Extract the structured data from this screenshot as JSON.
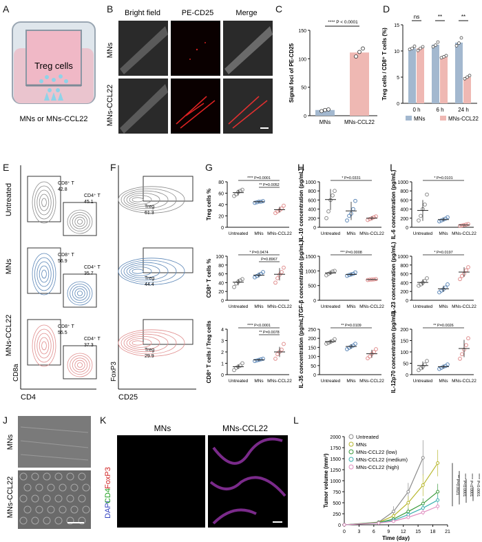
{
  "panel_letters": [
    "A",
    "B",
    "C",
    "D",
    "E",
    "F",
    "G",
    "H",
    "I",
    "J",
    "K",
    "L"
  ],
  "panel_a": {
    "cell_label": "Treg cells",
    "caption": "MNs or MNs-CCL22"
  },
  "panel_b": {
    "columns": [
      "Bright field",
      "PE-CD25",
      "Merge"
    ],
    "rows": [
      "MNs",
      "MNs-CCL22"
    ]
  },
  "panel_e": {
    "row_labels": [
      "Untreated",
      "MNs",
      "MNs-CCL22"
    ],
    "gates": [
      {
        "cd8_label": "CD8⁺ T",
        "cd8_value": "42.8",
        "cd4_label": "CD4⁺ T",
        "cd4_value": "45.1"
      },
      {
        "cd8_label": "CD8⁺ T",
        "cd8_value": "56.9",
        "cd4_label": "CD4⁺ T",
        "cd4_value": "35.7"
      },
      {
        "cd8_label": "CD8⁺ T",
        "cd8_value": "55.5",
        "cd4_label": "CD4⁺ T",
        "cd4_value": "37.3"
      }
    ],
    "xaxis": "CD4",
    "yaxis": "CD8a"
  },
  "panel_f": {
    "gate_label": "Treg",
    "values": [
      "61.3",
      "44.4",
      "29.9"
    ],
    "xaxis": "CD25",
    "yaxis": "FoxP3"
  },
  "panel_j": {
    "rows": [
      "MNs",
      "MNs-CCL22"
    ]
  },
  "panel_k": {
    "titles": [
      "MNs",
      "MNs-CCL22"
    ],
    "ylabel_parts": [
      "DAPI",
      "CD4",
      "FoxP3"
    ]
  },
  "colors": {
    "untreated": "#8a8a8a",
    "mns": "#5b86b7",
    "ccl22": "#e08c8c",
    "bar_mns": "#a3b8cf",
    "bar_ccl22": "#efb8b3"
  },
  "chart_data": [
    {
      "id": "C",
      "type": "bar",
      "categories": [
        "MNs",
        "MNs-CCL22"
      ],
      "values": [
        10,
        111
      ],
      "points": [
        [
          8,
          10,
          11
        ],
        [
          104,
          112,
          118
        ]
      ],
      "ylabel": "Signal foci of PE-CD25",
      "ylim": [
        0,
        150
      ],
      "yticks": [
        0,
        50,
        100,
        150
      ],
      "annotation": "**** P < 0.0001"
    },
    {
      "id": "D",
      "type": "bar",
      "categories": [
        "0 h",
        "6 h",
        "24 h"
      ],
      "series": [
        {
          "name": "MNs",
          "values": [
            10.5,
            11.2,
            11.6
          ],
          "points": [
            [
              10.3,
              10.5,
              10.9
            ],
            [
              10.8,
              11.1,
              11.7
            ],
            [
              11.0,
              11.5,
              12.5
            ]
          ]
        },
        {
          "name": "MNs-CCL22",
          "values": [
            10.5,
            8.9,
            5.0
          ],
          "points": [
            [
              10.1,
              10.5,
              10.8
            ],
            [
              8.7,
              8.9,
              9.1
            ],
            [
              4.7,
              5.0,
              5.3
            ]
          ]
        }
      ],
      "ylabel": "Treg cells / CD8⁺ T cells (%)",
      "ylim": [
        0,
        15
      ],
      "yticks": [
        0,
        5,
        10,
        15
      ],
      "sig": [
        "ns",
        "**",
        "**"
      ]
    },
    {
      "id": "G1",
      "type": "scatter",
      "categories": [
        "Untreated",
        "MNs",
        "MNs-CCL22"
      ],
      "ylabel": "Treg cells %",
      "ylim": [
        0,
        80
      ],
      "yticks": [
        0,
        20,
        40,
        60,
        80
      ],
      "points": [
        [
          55,
          58,
          62,
          64,
          66
        ],
        [
          43,
          44,
          45,
          45,
          46
        ],
        [
          25,
          28,
          30,
          33,
          38
        ]
      ],
      "means": [
        61,
        45,
        31
      ],
      "sds": [
        5,
        1.5,
        5
      ],
      "brackets": [
        {
          "from": 0,
          "to": 2,
          "text": "**** P=0.0001"
        },
        {
          "from": 1,
          "to": 2,
          "text": "** P=0.0052"
        }
      ]
    },
    {
      "id": "G2",
      "type": "scatter",
      "categories": [
        "Untreated",
        "MNs",
        "MNs-CCL22"
      ],
      "ylabel": "CD8⁺ T cells %",
      "ylim": [
        0,
        100
      ],
      "yticks": [
        0,
        20,
        40,
        60,
        80,
        100
      ],
      "points": [
        [
          30,
          38,
          42,
          45,
          48
        ],
        [
          52,
          55,
          58,
          60,
          64
        ],
        [
          40,
          50,
          58,
          64,
          74
        ]
      ],
      "means": [
        41,
        57,
        59
      ],
      "sds": [
        7,
        5,
        14
      ],
      "brackets": [
        {
          "from": 0,
          "to": 2,
          "text": "* P=0.0474"
        },
        {
          "from": 1,
          "to": 2,
          "text": "P=0.8967"
        }
      ]
    },
    {
      "id": "G3",
      "type": "scatter",
      "categories": [
        "Untreated",
        "MNs",
        "MNs-CCL22"
      ],
      "ylabel": "CD8⁺ T cells / Treg cells",
      "ylim": [
        0,
        4
      ],
      "yticks": [
        0,
        1,
        2,
        3,
        4
      ],
      "points": [
        [
          0.4,
          0.6,
          0.7,
          0.8,
          1.0
        ],
        [
          1.2,
          1.25,
          1.3,
          1.35,
          1.4
        ],
        [
          1.4,
          1.8,
          2.0,
          2.2,
          2.7
        ]
      ],
      "means": [
        0.7,
        1.3,
        2.0
      ],
      "sds": [
        0.2,
        0.1,
        0.45
      ],
      "brackets": [
        {
          "from": 0,
          "to": 2,
          "text": "**** P<0.0001"
        },
        {
          "from": 1,
          "to": 2,
          "text": "** P=0.0078"
        }
      ]
    },
    {
      "id": "H1",
      "type": "scatter",
      "categories": [
        "Untreated",
        "MNs",
        "MNs-CCL22"
      ],
      "ylabel": "IL-10 concentration (pg/mL)",
      "ylim": [
        0,
        1000
      ],
      "yticks": [
        0,
        200,
        400,
        600,
        800,
        1000
      ],
      "points": [
        [
          200,
          350,
          600,
          700,
          800
        ],
        [
          150,
          250,
          300,
          400,
          580
        ],
        [
          160,
          180,
          200,
          220,
          240
        ]
      ],
      "means": [
        610,
        360,
        200
      ],
      "sds": [
        230,
        200,
        40
      ],
      "brackets": [
        {
          "from": 0,
          "to": 2,
          "text": "* P=0.0331"
        }
      ]
    },
    {
      "id": "H2",
      "type": "scatter",
      "categories": [
        "Untreated",
        "MNs",
        "MNs-CCL22"
      ],
      "ylabel": "TGF-β concentration (pg/mL)",
      "ylim": [
        0,
        1500
      ],
      "yticks": [
        0,
        500,
        1000,
        1500
      ],
      "points": [
        [
          850,
          900,
          940,
          980,
          1000
        ],
        [
          830,
          860,
          880,
          900,
          950
        ],
        [
          690,
          700,
          705,
          710,
          720
        ]
      ],
      "means": [
        930,
        880,
        705
      ],
      "sds": [
        60,
        50,
        15
      ],
      "brackets": [
        {
          "from": 0,
          "to": 2,
          "text": "*** P=0.0008"
        }
      ]
    },
    {
      "id": "H3",
      "type": "scatter",
      "categories": [
        "Untreated",
        "MNs",
        "MNs-CCL22"
      ],
      "ylabel": "IL-35 concentration (pg/mL)",
      "ylim": [
        0,
        250
      ],
      "yticks": [
        0,
        50,
        100,
        150,
        200,
        250
      ],
      "points": [
        [
          170,
          175,
          180,
          185,
          195
        ],
        [
          140,
          148,
          155,
          160,
          170
        ],
        [
          90,
          100,
          115,
          125,
          140
        ]
      ],
      "means": [
        182,
        155,
        115
      ],
      "sds": [
        10,
        12,
        22
      ],
      "brackets": [
        {
          "from": 0,
          "to": 2,
          "text": "** P=0.0109"
        }
      ]
    },
    {
      "id": "I1",
      "type": "scatter",
      "categories": [
        "Untreated",
        "MNs",
        "MNs-CCL22"
      ],
      "ylabel": "IL-6 concentration (pg/mL)",
      "ylim": [
        0,
        1000
      ],
      "yticks": [
        0,
        200,
        400,
        600,
        800,
        1000
      ],
      "points": [
        [
          150,
          250,
          400,
          500,
          720
        ],
        [
          130,
          150,
          170,
          190,
          220
        ],
        [
          30,
          40,
          50,
          60,
          70
        ]
      ],
      "means": [
        370,
        170,
        50
      ],
      "sds": [
        230,
        40,
        15
      ],
      "brackets": [
        {
          "from": 0,
          "to": 2,
          "text": "* P=0.0101"
        }
      ]
    },
    {
      "id": "I2",
      "type": "scatter",
      "categories": [
        "Untreated",
        "MNs",
        "MNs-CCL22"
      ],
      "ylabel": "IL-23 concentration (pg/mL)",
      "ylim": [
        0,
        1000
      ],
      "yticks": [
        0,
        200,
        400,
        600,
        800,
        1000
      ],
      "points": [
        [
          330,
          360,
          400,
          440,
          500
        ],
        [
          180,
          220,
          250,
          290,
          360
        ],
        [
          480,
          550,
          600,
          680,
          750
        ]
      ],
      "means": [
        405,
        260,
        640
      ],
      "sds": [
        70,
        70,
        110
      ],
      "brackets": [
        {
          "from": 0,
          "to": 2,
          "text": "* P=0.0197"
        }
      ]
    },
    {
      "id": "I3",
      "type": "scatter",
      "categories": [
        "Untreated",
        "MNs",
        "MNs-CCL22"
      ],
      "ylabel": "IL-12p70 concentration (pg/mL)",
      "ylim": [
        0,
        200
      ],
      "yticks": [
        0,
        50,
        100,
        150,
        200
      ],
      "points": [
        [
          20,
          28,
          35,
          45,
          60
        ],
        [
          25,
          30,
          35,
          38,
          45
        ],
        [
          70,
          90,
          110,
          130,
          160
        ]
      ],
      "means": [
        40,
        35,
        115
      ],
      "sds": [
        18,
        8,
        38
      ],
      "brackets": [
        {
          "from": 0,
          "to": 2,
          "text": "** P=0.0026"
        }
      ]
    },
    {
      "id": "L",
      "type": "line",
      "xlabel": "Time (day)",
      "ylabel": "Tumor volume (mm³)",
      "x": [
        0,
        7,
        10,
        13,
        16,
        19
      ],
      "xlim": [
        0,
        21
      ],
      "xticks": [
        0,
        3,
        6,
        9,
        12,
        15,
        18,
        21
      ],
      "ylim": [
        0,
        2000
      ],
      "yticks": [
        0,
        250,
        500,
        750,
        1000,
        1250,
        1500,
        1750,
        2000
      ],
      "series": [
        {
          "name": "Untreated",
          "x": [
            0,
            7,
            10,
            13,
            16
          ],
          "values": [
            0,
            60,
            300,
            750,
            1520
          ],
          "err": [
            0,
            15,
            120,
            200,
            400
          ]
        },
        {
          "name": "MNs",
          "x": [
            0,
            7,
            10,
            13,
            16,
            19
          ],
          "values": [
            0,
            55,
            200,
            500,
            900,
            1400
          ],
          "err": [
            0,
            12,
            60,
            150,
            250,
            300
          ]
        },
        {
          "name": "MNs-CCL22 (low)",
          "x": [
            0,
            7,
            10,
            13,
            16,
            19
          ],
          "values": [
            0,
            50,
            130,
            300,
            480,
            750
          ],
          "err": [
            0,
            10,
            40,
            80,
            120,
            180
          ]
        },
        {
          "name": "MNs-CCL22 (medium)",
          "x": [
            0,
            7,
            10,
            13,
            16,
            19
          ],
          "values": [
            0,
            45,
            100,
            230,
            380,
            560
          ],
          "err": [
            0,
            8,
            30,
            60,
            90,
            120
          ]
        },
        {
          "name": "MNs-CCL22 (high)",
          "x": [
            0,
            7,
            10,
            13,
            16,
            19
          ],
          "values": [
            0,
            40,
            80,
            170,
            280,
            420
          ],
          "err": [
            0,
            8,
            20,
            40,
            60,
            80
          ]
        }
      ],
      "sig": [
        "** P=0.0021",
        "**** P<0.0001",
        "**** P<0.0001",
        "**** P<0.0001"
      ]
    }
  ]
}
